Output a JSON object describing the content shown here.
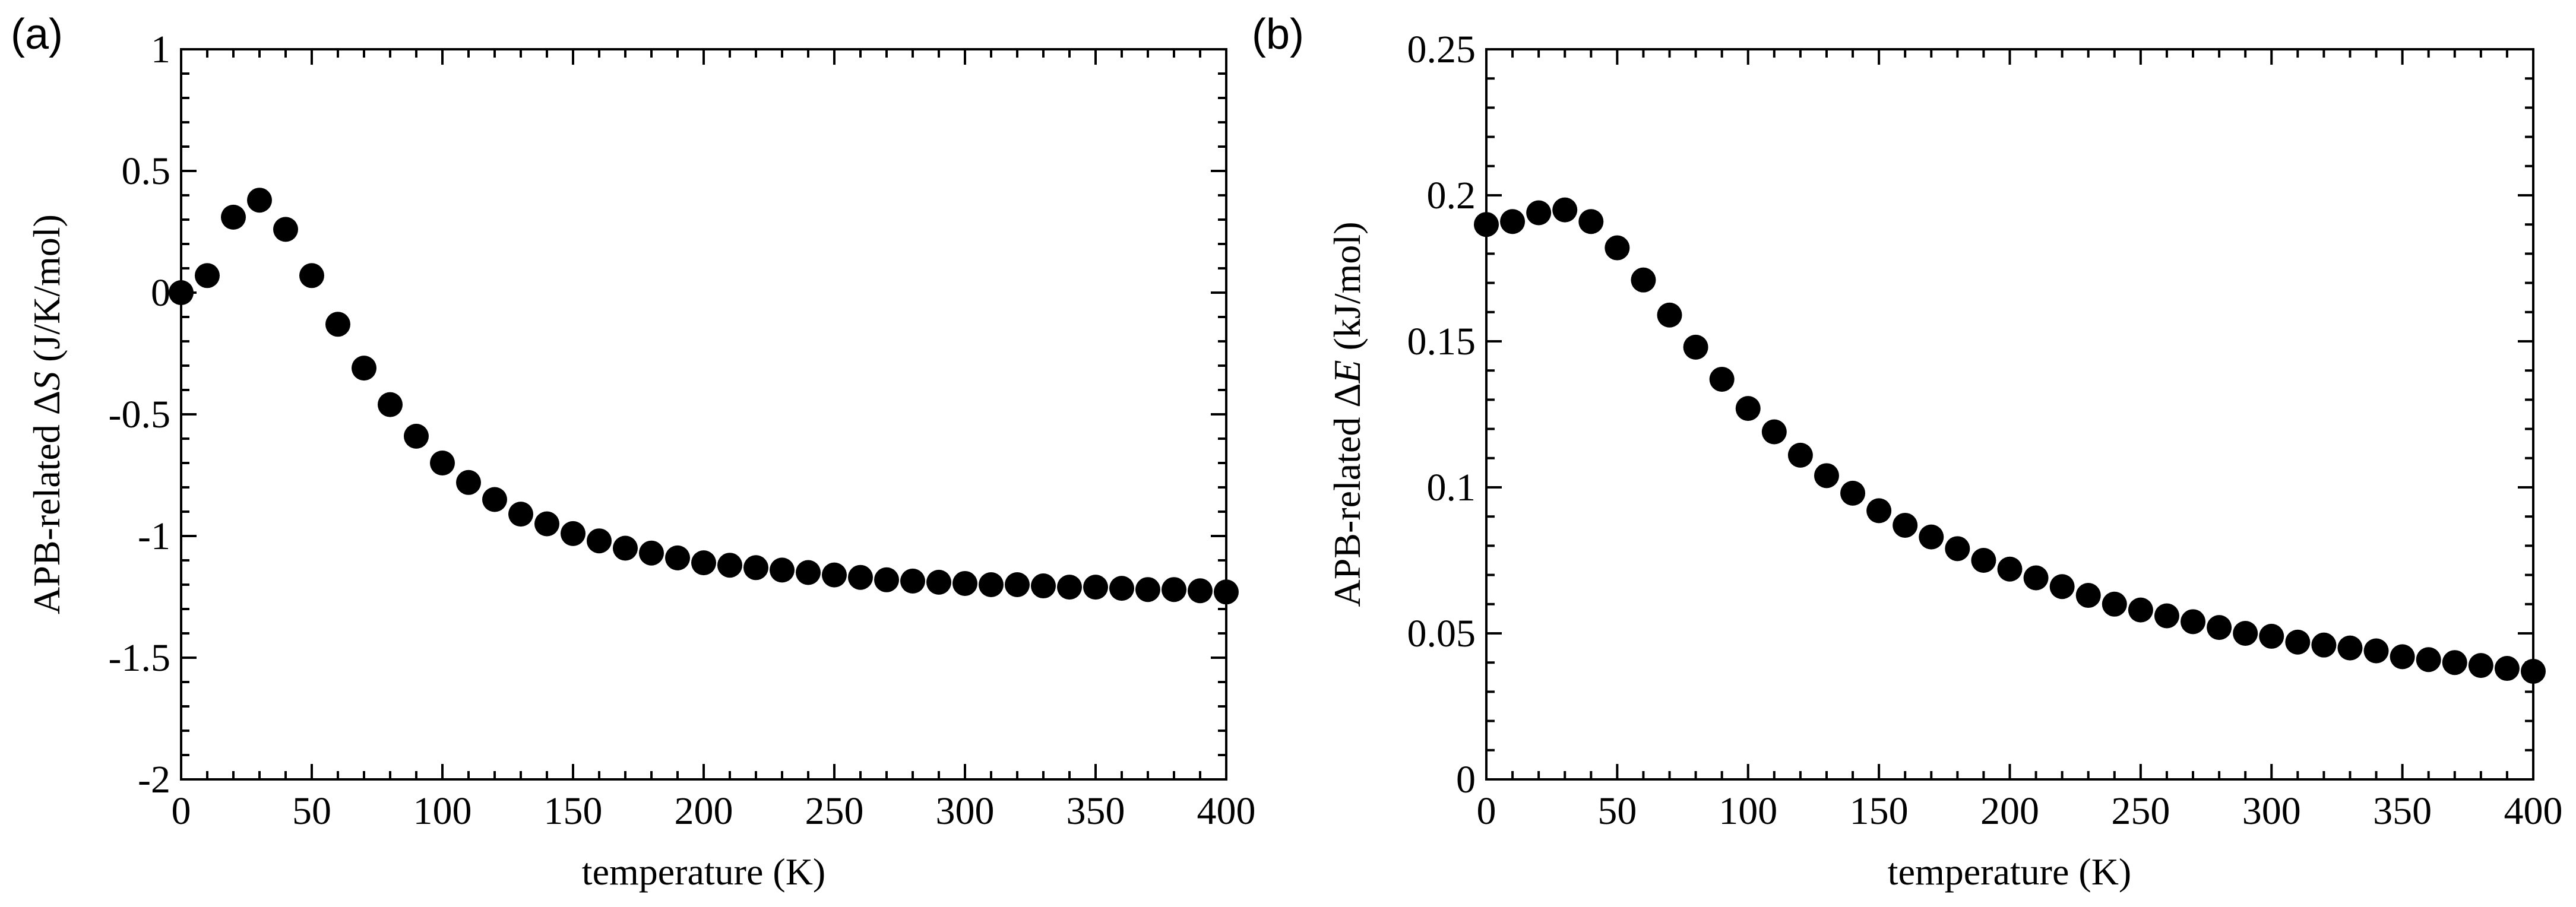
{
  "chart_data": [
    {
      "id": "a",
      "type": "scatter",
      "panel_label": "(a)",
      "xlabel": "temperature (K)",
      "ylabel_parts": [
        "APB-related Δ",
        "S",
        " (J/K/mol)"
      ],
      "xlim": [
        0,
        400
      ],
      "ylim": [
        -2,
        1
      ],
      "xticks": [
        0,
        50,
        100,
        150,
        200,
        250,
        300,
        350,
        400
      ],
      "xtick_labels": [
        "0",
        "50",
        "100",
        "150",
        "200",
        "250",
        "300",
        "350",
        "400"
      ],
      "xminor": [
        10,
        20,
        30,
        40,
        60,
        70,
        80,
        90,
        110,
        120,
        130,
        140,
        160,
        170,
        180,
        190,
        210,
        220,
        230,
        240,
        260,
        270,
        280,
        290,
        310,
        320,
        330,
        340,
        360,
        370,
        380,
        390
      ],
      "yticks": [
        -2,
        -1.5,
        -1,
        -0.5,
        0,
        0.5,
        1
      ],
      "ytick_labels": [
        "-2",
        "-1.5",
        "-1",
        "-0.5",
        "0",
        "0.5",
        "1"
      ],
      "yminor": [
        -1.9,
        -1.8,
        -1.7,
        -1.6,
        -1.4,
        -1.3,
        -1.2,
        -1.1,
        -0.9,
        -0.8,
        -0.7,
        -0.6,
        -0.4,
        -0.3,
        -0.2,
        -0.1,
        0.1,
        0.2,
        0.3,
        0.4,
        0.6,
        0.7,
        0.8,
        0.9
      ],
      "x": [
        0,
        10,
        20,
        30,
        40,
        50,
        60,
        70,
        80,
        90,
        100,
        110,
        120,
        130,
        140,
        150,
        160,
        170,
        180,
        190,
        200,
        210,
        220,
        230,
        240,
        250,
        260,
        270,
        280,
        290,
        300,
        310,
        320,
        330,
        340,
        350,
        360,
        370,
        380,
        390,
        400
      ],
      "y": [
        0.0,
        0.07,
        0.31,
        0.38,
        0.26,
        0.07,
        -0.13,
        -0.31,
        -0.46,
        -0.59,
        -0.7,
        -0.78,
        -0.85,
        -0.91,
        -0.95,
        -0.99,
        -1.02,
        -1.05,
        -1.07,
        -1.09,
        -1.11,
        -1.12,
        -1.13,
        -1.14,
        -1.15,
        -1.16,
        -1.17,
        -1.18,
        -1.185,
        -1.19,
        -1.195,
        -1.2,
        -1.2,
        -1.205,
        -1.21,
        -1.21,
        -1.215,
        -1.22,
        -1.22,
        -1.225,
        -1.23
      ]
    },
    {
      "id": "b",
      "type": "scatter",
      "panel_label": "(b)",
      "xlabel": "temperature (K)",
      "ylabel_parts": [
        "APB-related Δ",
        "E",
        " (kJ/mol)"
      ],
      "xlim": [
        0,
        400
      ],
      "ylim": [
        0,
        0.25
      ],
      "xticks": [
        0,
        50,
        100,
        150,
        200,
        250,
        300,
        350,
        400
      ],
      "xtick_labels": [
        "0",
        "50",
        "100",
        "150",
        "200",
        "250",
        "300",
        "350",
        "400"
      ],
      "xminor": [
        10,
        20,
        30,
        40,
        60,
        70,
        80,
        90,
        110,
        120,
        130,
        140,
        160,
        170,
        180,
        190,
        210,
        220,
        230,
        240,
        260,
        270,
        280,
        290,
        310,
        320,
        330,
        340,
        360,
        370,
        380,
        390
      ],
      "yticks": [
        0,
        0.05,
        0.1,
        0.15,
        0.2,
        0.25
      ],
      "ytick_labels": [
        "0",
        "0.05",
        "0.1",
        "0.15",
        "0.2",
        "0.25"
      ],
      "yminor": [
        0.01,
        0.02,
        0.03,
        0.04,
        0.06,
        0.07,
        0.08,
        0.09,
        0.11,
        0.12,
        0.13,
        0.14,
        0.16,
        0.17,
        0.18,
        0.19,
        0.21,
        0.22,
        0.23,
        0.24
      ],
      "x": [
        0,
        10,
        20,
        30,
        40,
        50,
        60,
        70,
        80,
        90,
        100,
        110,
        120,
        130,
        140,
        150,
        160,
        170,
        180,
        190,
        200,
        210,
        220,
        230,
        240,
        250,
        260,
        270,
        280,
        290,
        300,
        310,
        320,
        330,
        340,
        350,
        360,
        370,
        380,
        390,
        400
      ],
      "y": [
        0.19,
        0.191,
        0.194,
        0.195,
        0.191,
        0.182,
        0.171,
        0.159,
        0.148,
        0.137,
        0.127,
        0.119,
        0.111,
        0.104,
        0.098,
        0.092,
        0.087,
        0.083,
        0.079,
        0.075,
        0.072,
        0.069,
        0.066,
        0.063,
        0.06,
        0.058,
        0.056,
        0.054,
        0.052,
        0.05,
        0.049,
        0.047,
        0.046,
        0.045,
        0.044,
        0.042,
        0.041,
        0.04,
        0.039,
        0.038,
        0.037
      ]
    }
  ]
}
